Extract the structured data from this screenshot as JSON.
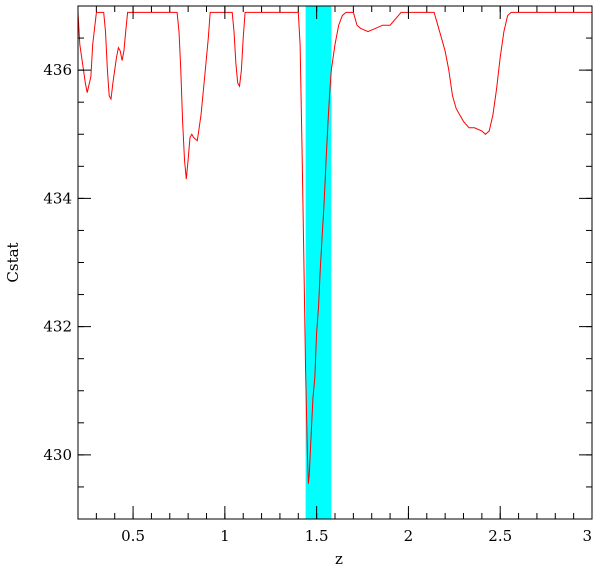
{
  "chart_data": {
    "type": "line",
    "title": "",
    "xlabel": "z",
    "ylabel": "Cstat",
    "xlim": [
      0.2,
      3.0
    ],
    "ylim": [
      429.0,
      437.0
    ],
    "x_ticks": [
      0.5,
      1,
      1.5,
      2,
      2.5,
      3
    ],
    "x_tick_labels": [
      "0.5",
      "1",
      "1.5",
      "2",
      "2.5",
      "3"
    ],
    "y_ticks": [
      430,
      432,
      434,
      436
    ],
    "y_tick_labels": [
      "430",
      "432",
      "434",
      "436"
    ],
    "x_minor_step": 0.1,
    "y_minor_step": 0.5,
    "grid": false,
    "highlight_band": {
      "x_range": [
        1.44,
        1.58
      ],
      "color": "#00ffff"
    },
    "series": [
      {
        "color": "#ff0000",
        "points": [
          [
            0.2,
            436.9
          ],
          [
            0.21,
            436.4
          ],
          [
            0.23,
            436.0
          ],
          [
            0.24,
            435.8
          ],
          [
            0.25,
            435.65
          ],
          [
            0.27,
            435.9
          ],
          [
            0.28,
            436.4
          ],
          [
            0.3,
            436.9
          ],
          [
            0.34,
            436.9
          ],
          [
            0.35,
            436.6
          ],
          [
            0.36,
            436.0
          ],
          [
            0.37,
            435.6
          ],
          [
            0.38,
            435.55
          ],
          [
            0.39,
            435.8
          ],
          [
            0.41,
            436.2
          ],
          [
            0.42,
            436.35
          ],
          [
            0.43,
            436.3
          ],
          [
            0.44,
            436.15
          ],
          [
            0.45,
            436.3
          ],
          [
            0.46,
            436.6
          ],
          [
            0.47,
            436.9
          ],
          [
            0.5,
            436.9
          ],
          [
            0.74,
            436.9
          ],
          [
            0.75,
            436.6
          ],
          [
            0.76,
            436.0
          ],
          [
            0.77,
            435.2
          ],
          [
            0.78,
            434.6
          ],
          [
            0.79,
            434.3
          ],
          [
            0.8,
            434.6
          ],
          [
            0.81,
            434.95
          ],
          [
            0.82,
            435.0
          ],
          [
            0.83,
            434.95
          ],
          [
            0.85,
            434.9
          ],
          [
            0.87,
            435.3
          ],
          [
            0.89,
            435.9
          ],
          [
            0.91,
            436.5
          ],
          [
            0.92,
            436.9
          ],
          [
            1.04,
            436.9
          ],
          [
            1.05,
            436.6
          ],
          [
            1.06,
            436.1
          ],
          [
            1.07,
            435.8
          ],
          [
            1.08,
            435.75
          ],
          [
            1.09,
            436.0
          ],
          [
            1.1,
            436.5
          ],
          [
            1.11,
            436.9
          ],
          [
            1.4,
            436.9
          ],
          [
            1.41,
            436.4
          ],
          [
            1.42,
            434.8
          ],
          [
            1.43,
            433.1
          ],
          [
            1.44,
            431.3
          ],
          [
            1.45,
            429.95
          ],
          [
            1.455,
            429.55
          ],
          [
            1.46,
            429.7
          ],
          [
            1.47,
            430.3
          ],
          [
            1.48,
            430.9
          ],
          [
            1.49,
            431.2
          ],
          [
            1.5,
            431.9
          ],
          [
            1.51,
            432.3
          ],
          [
            1.52,
            432.9
          ],
          [
            1.53,
            433.4
          ],
          [
            1.54,
            433.9
          ],
          [
            1.55,
            434.5
          ],
          [
            1.56,
            435.1
          ],
          [
            1.57,
            435.6
          ],
          [
            1.58,
            436.0
          ],
          [
            1.6,
            436.4
          ],
          [
            1.62,
            436.7
          ],
          [
            1.64,
            436.85
          ],
          [
            1.66,
            436.9
          ],
          [
            1.7,
            436.9
          ],
          [
            1.72,
            436.7
          ],
          [
            1.74,
            436.65
          ],
          [
            1.78,
            436.6
          ],
          [
            1.82,
            436.65
          ],
          [
            1.86,
            436.7
          ],
          [
            1.9,
            436.7
          ],
          [
            1.93,
            436.8
          ],
          [
            1.96,
            436.9
          ],
          [
            2.05,
            436.9
          ],
          [
            2.14,
            436.9
          ],
          [
            2.16,
            436.7
          ],
          [
            2.18,
            436.5
          ],
          [
            2.2,
            436.3
          ],
          [
            2.22,
            436.0
          ],
          [
            2.24,
            435.6
          ],
          [
            2.26,
            435.4
          ],
          [
            2.28,
            435.3
          ],
          [
            2.3,
            435.2
          ],
          [
            2.33,
            435.1
          ],
          [
            2.36,
            435.1
          ],
          [
            2.4,
            435.05
          ],
          [
            2.42,
            435.0
          ],
          [
            2.44,
            435.05
          ],
          [
            2.46,
            435.3
          ],
          [
            2.48,
            435.7
          ],
          [
            2.5,
            436.2
          ],
          [
            2.52,
            436.6
          ],
          [
            2.54,
            436.85
          ],
          [
            2.56,
            436.9
          ],
          [
            3.0,
            436.9
          ]
        ]
      }
    ]
  }
}
